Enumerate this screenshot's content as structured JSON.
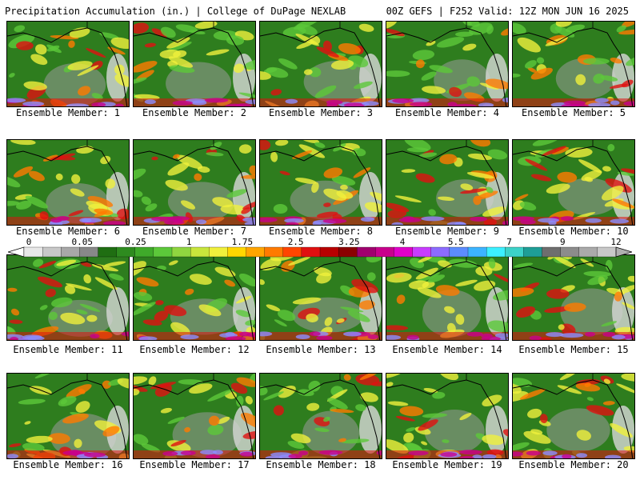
{
  "header": {
    "left_title": "Precipitation Accumulation (in.) | College of DuPage NEXLAB",
    "right_title": "00Z GEFS | F252 Valid: 12Z MON JUN 16 2025"
  },
  "members": [
    {
      "label": "Ensemble Member: 1"
    },
    {
      "label": "Ensemble Member: 2"
    },
    {
      "label": "Ensemble Member: 3"
    },
    {
      "label": "Ensemble Member: 4"
    },
    {
      "label": "Ensemble Member: 5"
    },
    {
      "label": "Ensemble Member: 6"
    },
    {
      "label": "Ensemble Member: 7"
    },
    {
      "label": "Ensemble Member: 8"
    },
    {
      "label": "Ensemble Member: 9"
    },
    {
      "label": "Ensemble Member: 10"
    },
    {
      "label": "Ensemble Member: 11"
    },
    {
      "label": "Ensemble Member: 12"
    },
    {
      "label": "Ensemble Member: 13"
    },
    {
      "label": "Ensemble Member: 14"
    },
    {
      "label": "Ensemble Member: 15"
    },
    {
      "label": "Ensemble Member: 16"
    },
    {
      "label": "Ensemble Member: 17"
    },
    {
      "label": "Ensemble Member: 18"
    },
    {
      "label": "Ensemble Member: 19"
    },
    {
      "label": "Ensemble Member: 20"
    }
  ],
  "colorbar": {
    "ticks": [
      "0",
      "0.05",
      "0.25",
      "1",
      "1.75",
      "2.5",
      "3.25",
      "4",
      "5.5",
      "7",
      "9",
      "12"
    ],
    "colors": [
      "#e8e8e8",
      "#c8c8c8",
      "#a8a8a8",
      "#888888",
      "#1f6e12",
      "#2e8b1f",
      "#3faa2a",
      "#5cc83a",
      "#8fd640",
      "#c8e63c",
      "#f0f03c",
      "#ffd700",
      "#ffa500",
      "#ff7a00",
      "#ff4500",
      "#e01010",
      "#b80000",
      "#8b0000",
      "#a0006e",
      "#c8008c",
      "#e000c8",
      "#c83cff",
      "#8c6cff",
      "#5c8cff",
      "#3cb4ff",
      "#3cf0ff",
      "#3cd2c8",
      "#1e9e96",
      "#6e6e6e",
      "#8c8c8c",
      "#aaaaaa",
      "#c8c8c8"
    ]
  },
  "map_colors": {
    "ocean_base": "#2e7d1e",
    "dry": "#9a9a9a",
    "light": "#5cc83a",
    "moderate": "#f0f03c",
    "heavy": "#ff7a00",
    "very_heavy": "#e01010",
    "extreme": "#c8008c",
    "ice": "#8c8cff",
    "coast": "#000000"
  }
}
